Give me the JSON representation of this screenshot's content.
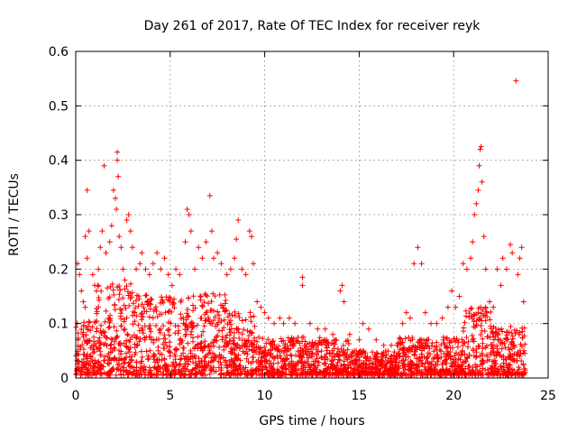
{
  "chart_data": {
    "type": "scatter",
    "title": "Day 261 of 2017, Rate Of TEC Index for receiver reyk",
    "xlabel": "GPS time / hours",
    "ylabel": "ROTI / TECUs",
    "xlim": [
      0,
      25
    ],
    "ylim": [
      0,
      0.6
    ],
    "xticks": [
      0,
      5,
      10,
      15,
      20,
      25
    ],
    "yticks": [
      0,
      0.1,
      0.2,
      0.3,
      0.4,
      0.5,
      0.6
    ],
    "grid": true,
    "marker": "+",
    "color": "#ff0000",
    "series": [
      {
        "name": "ROTI",
        "points": [
          [
            0.1,
            0.21
          ],
          [
            0.2,
            0.19
          ],
          [
            0.3,
            0.16
          ],
          [
            0.4,
            0.14
          ],
          [
            0.5,
            0.13
          ],
          [
            0.6,
            0.22
          ],
          [
            0.6,
            0.345
          ],
          [
            0.5,
            0.26
          ],
          [
            0.7,
            0.27
          ],
          [
            0.9,
            0.19
          ],
          [
            1.0,
            0.17
          ],
          [
            1.1,
            0.16
          ],
          [
            1.2,
            0.2
          ],
          [
            1.3,
            0.24
          ],
          [
            1.4,
            0.27
          ],
          [
            1.5,
            0.39
          ],
          [
            1.6,
            0.23
          ],
          [
            1.8,
            0.25
          ],
          [
            1.9,
            0.28
          ],
          [
            2.0,
            0.345
          ],
          [
            2.1,
            0.33
          ],
          [
            2.15,
            0.31
          ],
          [
            2.2,
            0.415
          ],
          [
            2.2,
            0.4
          ],
          [
            2.25,
            0.37
          ],
          [
            2.3,
            0.26
          ],
          [
            2.4,
            0.24
          ],
          [
            2.5,
            0.2
          ],
          [
            2.6,
            0.18
          ],
          [
            2.7,
            0.29
          ],
          [
            2.8,
            0.3
          ],
          [
            2.9,
            0.27
          ],
          [
            3.0,
            0.24
          ],
          [
            3.2,
            0.2
          ],
          [
            3.4,
            0.21
          ],
          [
            3.5,
            0.23
          ],
          [
            3.7,
            0.2
          ],
          [
            3.9,
            0.19
          ],
          [
            4.1,
            0.21
          ],
          [
            4.3,
            0.23
          ],
          [
            4.5,
            0.2
          ],
          [
            4.7,
            0.22
          ],
          [
            4.9,
            0.19
          ],
          [
            5.1,
            0.17
          ],
          [
            5.3,
            0.2
          ],
          [
            5.5,
            0.19
          ],
          [
            5.8,
            0.25
          ],
          [
            5.9,
            0.31
          ],
          [
            6.0,
            0.3
          ],
          [
            6.1,
            0.27
          ],
          [
            6.3,
            0.2
          ],
          [
            6.5,
            0.24
          ],
          [
            6.7,
            0.22
          ],
          [
            6.9,
            0.25
          ],
          [
            7.1,
            0.335
          ],
          [
            7.2,
            0.27
          ],
          [
            7.3,
            0.22
          ],
          [
            7.5,
            0.23
          ],
          [
            7.7,
            0.21
          ],
          [
            8.0,
            0.19
          ],
          [
            8.2,
            0.2
          ],
          [
            8.4,
            0.22
          ],
          [
            8.5,
            0.255
          ],
          [
            8.6,
            0.29
          ],
          [
            8.8,
            0.2
          ],
          [
            9.0,
            0.19
          ],
          [
            9.2,
            0.27
          ],
          [
            9.3,
            0.26
          ],
          [
            9.4,
            0.21
          ],
          [
            9.6,
            0.14
          ],
          [
            9.8,
            0.13
          ],
          [
            10.0,
            0.12
          ],
          [
            10.2,
            0.11
          ],
          [
            10.5,
            0.1
          ],
          [
            10.8,
            0.11
          ],
          [
            11.0,
            0.1
          ],
          [
            11.3,
            0.11
          ],
          [
            11.6,
            0.1
          ],
          [
            12.0,
            0.185
          ],
          [
            12.0,
            0.17
          ],
          [
            12.4,
            0.1
          ],
          [
            12.8,
            0.09
          ],
          [
            13.2,
            0.09
          ],
          [
            13.6,
            0.08
          ],
          [
            14.0,
            0.16
          ],
          [
            14.1,
            0.17
          ],
          [
            14.2,
            0.14
          ],
          [
            14.5,
            0.08
          ],
          [
            15.0,
            0.07
          ],
          [
            15.2,
            0.1
          ],
          [
            15.5,
            0.09
          ],
          [
            15.9,
            0.07
          ],
          [
            16.3,
            0.06
          ],
          [
            16.7,
            0.06
          ],
          [
            17.0,
            0.06
          ],
          [
            17.3,
            0.1
          ],
          [
            17.5,
            0.12
          ],
          [
            17.7,
            0.11
          ],
          [
            17.9,
            0.21
          ],
          [
            18.1,
            0.24
          ],
          [
            18.3,
            0.21
          ],
          [
            18.5,
            0.12
          ],
          [
            18.8,
            0.1
          ],
          [
            19.1,
            0.1
          ],
          [
            19.4,
            0.11
          ],
          [
            19.7,
            0.13
          ],
          [
            19.9,
            0.16
          ],
          [
            20.1,
            0.13
          ],
          [
            20.3,
            0.15
          ],
          [
            20.5,
            0.21
          ],
          [
            20.7,
            0.2
          ],
          [
            20.9,
            0.22
          ],
          [
            21.0,
            0.25
          ],
          [
            21.1,
            0.3
          ],
          [
            21.2,
            0.32
          ],
          [
            21.3,
            0.345
          ],
          [
            21.35,
            0.39
          ],
          [
            21.4,
            0.42
          ],
          [
            21.45,
            0.425
          ],
          [
            21.5,
            0.36
          ],
          [
            21.6,
            0.26
          ],
          [
            21.7,
            0.2
          ],
          [
            21.9,
            0.14
          ],
          [
            22.1,
            0.13
          ],
          [
            22.3,
            0.2
          ],
          [
            22.5,
            0.17
          ],
          [
            22.6,
            0.22
          ],
          [
            22.8,
            0.2
          ],
          [
            23.0,
            0.245
          ],
          [
            23.1,
            0.23
          ],
          [
            23.3,
            0.546
          ],
          [
            23.4,
            0.19
          ],
          [
            23.5,
            0.22
          ],
          [
            23.6,
            0.24
          ],
          [
            23.7,
            0.14
          ]
        ]
      }
    ]
  }
}
